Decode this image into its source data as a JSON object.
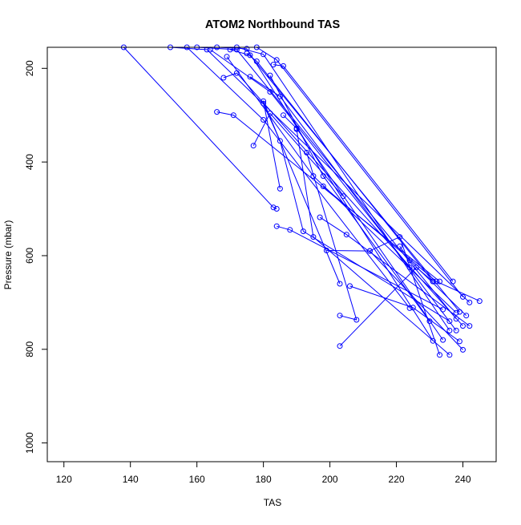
{
  "chart_data": {
    "type": "line",
    "title": "ATOM2 Northbound TAS",
    "xlabel": "TAS",
    "ylabel": "Pressure (mbar)",
    "xlim": [
      115,
      250
    ],
    "ylim": [
      1040,
      155
    ],
    "y_reversed": true,
    "grid": false,
    "x_ticks": [
      120,
      140,
      160,
      180,
      200,
      220,
      240
    ],
    "y_ticks": [
      200,
      400,
      600,
      800,
      1000
    ],
    "colors": {
      "series": "#0000ff",
      "axis": "#000000",
      "background": "#ffffff"
    },
    "marker": "open-circle",
    "series": [
      {
        "points": [
          [
            138,
            155
          ],
          [
            183,
            497
          ],
          [
            184,
            500
          ]
        ]
      },
      {
        "points": [
          [
            166,
            293
          ],
          [
            171,
            300
          ],
          [
            233,
            655
          ]
        ]
      },
      {
        "points": [
          [
            168,
            220
          ],
          [
            172,
            210
          ],
          [
            240,
            750
          ]
        ]
      },
      {
        "points": [
          [
            175,
            168
          ],
          [
            178,
            185
          ],
          [
            231,
            655
          ]
        ]
      },
      {
        "points": [
          [
            177,
            365
          ],
          [
            182,
            296
          ],
          [
            204,
            473
          ]
        ]
      },
      {
        "points": [
          [
            180,
            275
          ],
          [
            185,
            355
          ],
          [
            192,
            548
          ],
          [
            236,
            740
          ]
        ]
      },
      {
        "points": [
          [
            183,
            192
          ],
          [
            186,
            195
          ],
          [
            237,
            655
          ]
        ]
      },
      {
        "points": [
          [
            184,
            537
          ],
          [
            188,
            545
          ],
          [
            234,
            715
          ]
        ]
      },
      {
        "points": [
          [
            185,
            457
          ],
          [
            180,
            270
          ],
          [
            203,
            660
          ]
        ]
      },
      {
        "points": [
          [
            190,
            330
          ],
          [
            195,
            560
          ],
          [
            236,
            812
          ]
        ]
      },
      {
        "points": [
          [
            193,
            380
          ],
          [
            208,
            737
          ],
          [
            203,
            728
          ]
        ]
      },
      {
        "points": [
          [
            197,
            518
          ],
          [
            205,
            555
          ],
          [
            242,
            750
          ]
        ]
      },
      {
        "points": [
          [
            199,
            589
          ],
          [
            212,
            590
          ],
          [
            240,
            801
          ]
        ]
      },
      {
        "points": [
          [
            198,
            452
          ],
          [
            232,
            655
          ],
          [
            245,
            697
          ]
        ]
      },
      {
        "points": [
          [
            203,
            793
          ],
          [
            226,
            625
          ],
          [
            231,
            655
          ]
        ]
      },
      {
        "points": [
          [
            206,
            665
          ],
          [
            225,
            711
          ],
          [
            239,
            783
          ]
        ]
      },
      {
        "points": [
          [
            212,
            590
          ],
          [
            221,
            560
          ],
          [
            233,
            812
          ]
        ]
      },
      {
        "points": [
          [
            221,
            580
          ],
          [
            224,
            610
          ],
          [
            241,
            728
          ]
        ]
      },
      {
        "points": [
          [
            182,
            215
          ],
          [
            198,
            430
          ],
          [
            230,
            740
          ]
        ]
      },
      {
        "points": [
          [
            176,
            218
          ],
          [
            185,
            260
          ],
          [
            238,
            760
          ]
        ]
      },
      {
        "points": [
          [
            170,
            160
          ],
          [
            176,
            172
          ],
          [
            239,
            720
          ]
        ]
      },
      {
        "points": [
          [
            186,
            300
          ],
          [
            190,
            328
          ],
          [
            234,
            780
          ]
        ]
      },
      {
        "points": [
          [
            152,
            155
          ],
          [
            163,
            160
          ],
          [
            242,
            700
          ]
        ]
      },
      {
        "points": [
          [
            160,
            155
          ],
          [
            172,
            160
          ],
          [
            238,
            735
          ]
        ]
      },
      {
        "points": [
          [
            166,
            155
          ],
          [
            175,
            158
          ],
          [
            231,
            782
          ]
        ]
      },
      {
        "points": [
          [
            172,
            155
          ],
          [
            180,
            170
          ],
          [
            236,
            760
          ]
        ]
      },
      {
        "points": [
          [
            178,
            155
          ],
          [
            184,
            182
          ],
          [
            240,
            688
          ]
        ]
      },
      {
        "points": [
          [
            164,
            160
          ],
          [
            182,
            250
          ],
          [
            224,
            625
          ]
        ]
      },
      {
        "points": [
          [
            157,
            155
          ],
          [
            180,
            310
          ],
          [
            224,
            712
          ]
        ]
      },
      {
        "points": [
          [
            169,
            175
          ],
          [
            195,
            430
          ],
          [
            238,
            722
          ]
        ]
      }
    ]
  }
}
